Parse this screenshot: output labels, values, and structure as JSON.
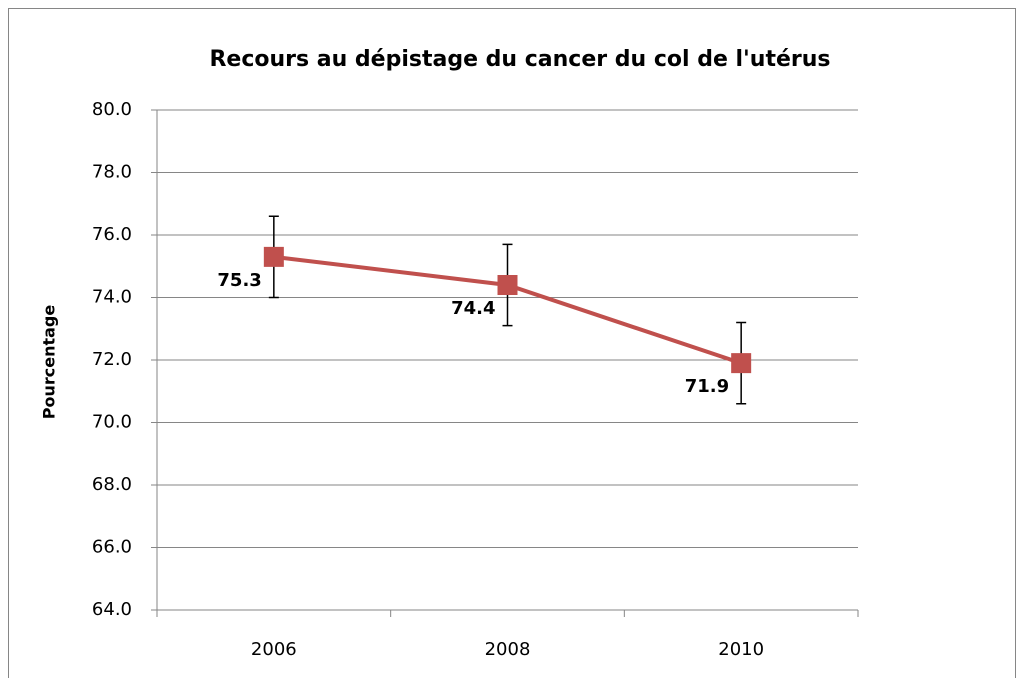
{
  "chart_data": {
    "type": "line",
    "title": "Recours au dépistage du cancer du col de l'utérus",
    "ylabel": "Pourcentage",
    "categories": [
      "2006",
      "2008",
      "2010"
    ],
    "series": [
      {
        "name": "Pourcentage",
        "color": "#c0504d",
        "values": [
          75.3,
          74.4,
          71.9
        ],
        "errors": [
          1.3,
          1.3,
          1.3
        ]
      }
    ],
    "ylim": [
      64,
      80
    ],
    "yticks": [
      {
        "value": 64,
        "label": "64.0"
      },
      {
        "value": 66,
        "label": "66.0"
      },
      {
        "value": 68,
        "label": "68.0"
      },
      {
        "value": 70,
        "label": "70.0"
      },
      {
        "value": 72,
        "label": "72.0"
      },
      {
        "value": 74,
        "label": "74.0"
      },
      {
        "value": 76,
        "label": "76.0"
      },
      {
        "value": 78,
        "label": "78.0"
      },
      {
        "value": 80,
        "label": "80.0"
      }
    ],
    "grid": true
  }
}
